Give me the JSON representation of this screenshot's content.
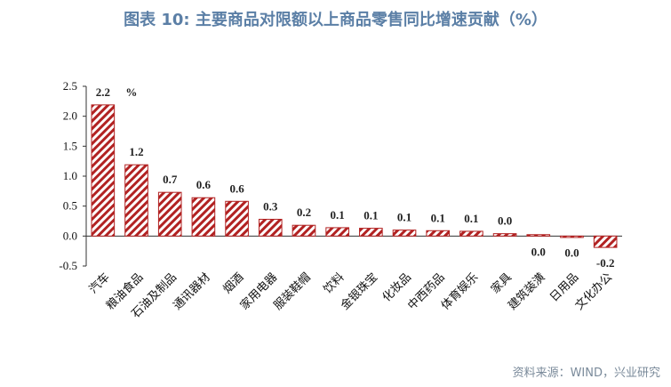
{
  "title": "图表 10: 主要商品对限额以上商品零售同比增速贡献（%）",
  "source": "资料来源：WIND，兴业研究",
  "chart_data": {
    "type": "bar",
    "categories": [
      "汽车",
      "粮油食品",
      "石油及制品",
      "通讯器材",
      "烟酒",
      "家用电器",
      "服装鞋帽",
      "饮料",
      "金银珠宝",
      "化妆品",
      "中西药品",
      "体育娱乐",
      "家具",
      "建筑装潢",
      "日用品",
      "文化办公"
    ],
    "values": [
      2.19,
      1.19,
      0.73,
      0.64,
      0.58,
      0.28,
      0.18,
      0.14,
      0.13,
      0.1,
      0.09,
      0.08,
      0.04,
      0.02,
      -0.02,
      -0.19
    ],
    "data_labels": [
      "2.2",
      "1.2",
      "0.7",
      "0.6",
      "0.6",
      "0.3",
      "0.2",
      "0.1",
      "0.1",
      "0.1",
      "0.1",
      "0.1",
      "0.0",
      "0.0",
      "0.0",
      "-0.2"
    ],
    "unit_label": "%",
    "ylim": [
      -0.5,
      2.5
    ],
    "yticks": [
      "-0.5",
      "0.0",
      "0.5",
      "1.0",
      "1.5",
      "2.0",
      "2.5"
    ],
    "series_color": "#b22222",
    "pattern": "diagonal-hatch",
    "grid": false,
    "legend": false
  }
}
